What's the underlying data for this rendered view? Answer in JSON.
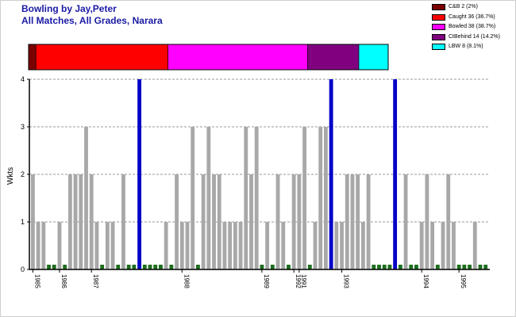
{
  "title_line1": "Bowling by Jay,Peter",
  "title_line2": "All Matches, All Grades, Narara",
  "legend": [
    {
      "label": "C&B 2 (2%)",
      "color": "#7a0000"
    },
    {
      "label": "Caught 36 (36.7%)",
      "color": "#ff0000"
    },
    {
      "label": "Bowled 38 (38.7%)",
      "color": "#ff00ff"
    },
    {
      "label": "CtBehind 14 (14.2%)",
      "color": "#800080"
    },
    {
      "label": "LBW 8 (8.1%)",
      "color": "#00ffff"
    }
  ],
  "colors": {
    "zero": "#1e6e1e",
    "normal": "#a8a8a8",
    "max": "#0000c8"
  },
  "chart_data": {
    "type": "bar",
    "ylabel": "Wkts",
    "ylim": [
      0,
      4
    ],
    "y_ticks": [
      "0",
      "1",
      "2",
      "3",
      "4"
    ],
    "grid": true,
    "dismissal_breakdown": [
      {
        "type": "C&B",
        "count": 2,
        "pct": 2
      },
      {
        "type": "Caught",
        "count": 36,
        "pct": 36.7
      },
      {
        "type": "Bowled",
        "count": 38,
        "pct": 38.7
      },
      {
        "type": "CtBehind",
        "count": 14,
        "pct": 14.2
      },
      {
        "type": "LBW",
        "count": 8,
        "pct": 8.1
      }
    ],
    "values": [
      2,
      1,
      1,
      0,
      0,
      1,
      0,
      2,
      2,
      2,
      3,
      2,
      1,
      0,
      1,
      1,
      0,
      2,
      0,
      0,
      4,
      0,
      0,
      0,
      0,
      1,
      0,
      2,
      1,
      1,
      3,
      0,
      2,
      3,
      2,
      2,
      1,
      1,
      1,
      1,
      3,
      2,
      3,
      0,
      1,
      0,
      2,
      1,
      0,
      2,
      2,
      3,
      0,
      1,
      3,
      3,
      4,
      1,
      1,
      2,
      2,
      2,
      1,
      2,
      0,
      0,
      0,
      0,
      4,
      0,
      2,
      0,
      0,
      1,
      2,
      1,
      0,
      1,
      2,
      1,
      0,
      0,
      0,
      1,
      0,
      0
    ],
    "x_labels": [
      {
        "label": "1985",
        "index": 0
      },
      {
        "label": "1986",
        "index": 5
      },
      {
        "label": "1987",
        "index": 11
      },
      {
        "label": "1988",
        "index": 28
      },
      {
        "label": "1989",
        "index": 43
      },
      {
        "label": "1992",
        "index": 49
      },
      {
        "label": "1991",
        "index": 50
      },
      {
        "label": "1993",
        "index": 58
      },
      {
        "label": "1994",
        "index": 73
      },
      {
        "label": "1995",
        "index": 80
      }
    ]
  }
}
